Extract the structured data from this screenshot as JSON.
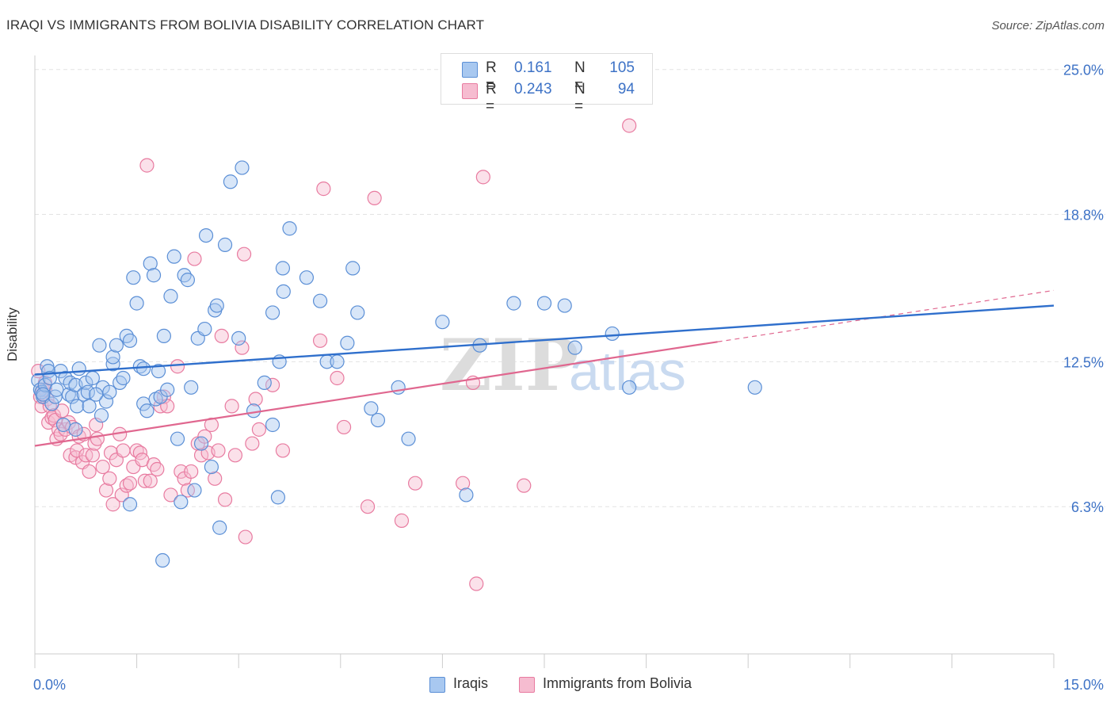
{
  "header": {
    "title": "IRAQI VS IMMIGRANTS FROM BOLIVIA DISABILITY CORRELATION CHART",
    "source": "Source: ZipAtlas.com"
  },
  "legend": {
    "rows": [
      {
        "r_label": "R =",
        "r_value": "0.161",
        "n_label": "N =",
        "n_value": "105"
      },
      {
        "r_label": "R =",
        "r_value": "0.243",
        "n_label": "N =",
        "n_value": "94"
      }
    ]
  },
  "bottom_legend": {
    "series1": "Iraqis",
    "series2": "Immigrants from Bolivia"
  },
  "watermark": {
    "zip": "ZIP",
    "atlas": "atlas"
  },
  "colors": {
    "series1_fill": "#a8c8f0",
    "series1_stroke": "#5b8fd6",
    "series1_line": "#2f6fcc",
    "series2_fill": "#f6bcd0",
    "series2_stroke": "#e87ba0",
    "series2_line": "#e0678f",
    "grid": "#e3e3e3",
    "tick_label": "#3d72c6"
  },
  "chart_data": {
    "type": "scatter",
    "title": "IRAQI VS IMMIGRANTS FROM BOLIVIA DISABILITY CORRELATION CHART",
    "xlabel": "",
    "ylabel": "Disability",
    "xlim": [
      0,
      15
    ],
    "ylim": [
      0,
      25.6
    ],
    "x_tick_labels": [
      "0.0%",
      "15.0%"
    ],
    "y_ticks": [
      6.3,
      12.5,
      18.8,
      25.0
    ],
    "y_tick_labels": [
      "6.3%",
      "12.5%",
      "18.8%",
      "25.0%"
    ],
    "grid": true,
    "legend_position": "top-center",
    "series": [
      {
        "name": "Iraqis",
        "R": 0.161,
        "N": 105,
        "trend": {
          "x": [
            0.0,
            15.0
          ],
          "y": [
            11.95,
            14.9
          ]
        },
        "points": [
          [
            0.05,
            11.7
          ],
          [
            0.08,
            11.3
          ],
          [
            0.1,
            11.2
          ],
          [
            0.12,
            11.0
          ],
          [
            0.15,
            11.5
          ],
          [
            0.18,
            12.3
          ],
          [
            0.2,
            12.1
          ],
          [
            0.22,
            11.8
          ],
          [
            0.25,
            10.7
          ],
          [
            0.3,
            11.0
          ],
          [
            0.32,
            11.3
          ],
          [
            0.38,
            12.1
          ],
          [
            0.42,
            9.8
          ],
          [
            0.45,
            11.8
          ],
          [
            0.5,
            11.1
          ],
          [
            0.52,
            11.6
          ],
          [
            0.55,
            11.0
          ],
          [
            0.6,
            11.5
          ],
          [
            0.62,
            10.6
          ],
          [
            0.65,
            12.2
          ],
          [
            0.72,
            11.1
          ],
          [
            0.75,
            11.6
          ],
          [
            0.78,
            11.2
          ],
          [
            0.8,
            10.6
          ],
          [
            0.85,
            11.8
          ],
          [
            0.95,
            13.2
          ],
          [
            0.98,
            10.2
          ],
          [
            1.0,
            11.4
          ],
          [
            1.05,
            10.8
          ],
          [
            1.1,
            11.2
          ],
          [
            1.15,
            12.4
          ],
          [
            1.15,
            12.7
          ],
          [
            1.2,
            13.2
          ],
          [
            1.25,
            11.6
          ],
          [
            1.3,
            11.8
          ],
          [
            1.35,
            13.6
          ],
          [
            1.4,
            13.4
          ],
          [
            1.45,
            16.1
          ],
          [
            1.5,
            15.0
          ],
          [
            1.55,
            12.3
          ],
          [
            1.6,
            12.2
          ],
          [
            1.6,
            10.7
          ],
          [
            1.65,
            10.4
          ],
          [
            1.7,
            16.7
          ],
          [
            1.75,
            16.2
          ],
          [
            1.78,
            10.9
          ],
          [
            1.82,
            12.1
          ],
          [
            1.85,
            11.0
          ],
          [
            1.88,
            4.0
          ],
          [
            1.9,
            13.6
          ],
          [
            1.95,
            11.3
          ],
          [
            2.0,
            15.3
          ],
          [
            2.05,
            17.0
          ],
          [
            2.1,
            9.2
          ],
          [
            2.15,
            6.5
          ],
          [
            2.2,
            16.2
          ],
          [
            2.25,
            16.0
          ],
          [
            2.3,
            11.4
          ],
          [
            2.35,
            7.0
          ],
          [
            2.4,
            13.5
          ],
          [
            2.45,
            9.0
          ],
          [
            2.5,
            13.9
          ],
          [
            2.52,
            17.9
          ],
          [
            2.6,
            8.0
          ],
          [
            2.65,
            14.7
          ],
          [
            2.68,
            14.9
          ],
          [
            2.72,
            5.4
          ],
          [
            2.8,
            17.5
          ],
          [
            2.88,
            20.2
          ],
          [
            3.0,
            13.5
          ],
          [
            3.05,
            20.8
          ],
          [
            3.22,
            10.4
          ],
          [
            3.38,
            11.6
          ],
          [
            3.5,
            14.6
          ],
          [
            3.5,
            9.8
          ],
          [
            3.58,
            6.7
          ],
          [
            3.6,
            12.5
          ],
          [
            3.65,
            16.5
          ],
          [
            3.66,
            15.5
          ],
          [
            3.75,
            18.2
          ],
          [
            4.0,
            16.1
          ],
          [
            4.2,
            15.1
          ],
          [
            4.3,
            12.5
          ],
          [
            4.45,
            12.5
          ],
          [
            4.6,
            13.3
          ],
          [
            4.68,
            16.5
          ],
          [
            4.75,
            14.6
          ],
          [
            4.95,
            10.5
          ],
          [
            5.05,
            10.0
          ],
          [
            5.35,
            11.4
          ],
          [
            5.5,
            9.2
          ],
          [
            6.0,
            14.2
          ],
          [
            6.35,
            6.8
          ],
          [
            6.55,
            13.2
          ],
          [
            7.05,
            15.0
          ],
          [
            7.5,
            15.0
          ],
          [
            7.8,
            14.9
          ],
          [
            7.95,
            13.1
          ],
          [
            8.5,
            13.7
          ],
          [
            8.75,
            11.4
          ],
          [
            10.6,
            11.4
          ],
          [
            0.12,
            11.1
          ],
          [
            0.6,
            9.6
          ],
          [
            0.9,
            11.1
          ],
          [
            1.4,
            6.4
          ]
        ]
      },
      {
        "name": "Immigrants from Bolivia",
        "R": 0.243,
        "N": 94,
        "trend": {
          "x": [
            0.0,
            10.05
          ],
          "y": [
            8.9,
            13.35
          ]
        },
        "trend_dashed": {
          "x": [
            10.05,
            15.0
          ],
          "y": [
            13.35,
            15.55
          ]
        },
        "points": [
          [
            0.05,
            12.1
          ],
          [
            0.08,
            11.0
          ],
          [
            0.1,
            10.6
          ],
          [
            0.12,
            11.3
          ],
          [
            0.15,
            11.6
          ],
          [
            0.18,
            10.9
          ],
          [
            0.2,
            9.9
          ],
          [
            0.22,
            10.6
          ],
          [
            0.25,
            10.1
          ],
          [
            0.28,
            10.2
          ],
          [
            0.3,
            10.0
          ],
          [
            0.32,
            9.2
          ],
          [
            0.35,
            9.6
          ],
          [
            0.38,
            9.4
          ],
          [
            0.4,
            10.4
          ],
          [
            0.45,
            9.6
          ],
          [
            0.5,
            9.9
          ],
          [
            0.52,
            8.5
          ],
          [
            0.55,
            9.7
          ],
          [
            0.6,
            8.4
          ],
          [
            0.62,
            8.7
          ],
          [
            0.65,
            9.3
          ],
          [
            0.7,
            8.2
          ],
          [
            0.72,
            9.4
          ],
          [
            0.75,
            8.5
          ],
          [
            0.8,
            7.8
          ],
          [
            0.85,
            8.5
          ],
          [
            0.88,
            9.0
          ],
          [
            0.9,
            9.8
          ],
          [
            0.92,
            9.2
          ],
          [
            1.0,
            8.0
          ],
          [
            1.05,
            7.0
          ],
          [
            1.1,
            7.5
          ],
          [
            1.12,
            8.6
          ],
          [
            1.15,
            6.4
          ],
          [
            1.2,
            8.3
          ],
          [
            1.25,
            9.4
          ],
          [
            1.28,
            6.8
          ],
          [
            1.3,
            8.7
          ],
          [
            1.35,
            7.2
          ],
          [
            1.4,
            7.3
          ],
          [
            1.45,
            8.0
          ],
          [
            1.5,
            8.7
          ],
          [
            1.55,
            8.6
          ],
          [
            1.58,
            8.3
          ],
          [
            1.62,
            7.4
          ],
          [
            1.65,
            20.9
          ],
          [
            1.7,
            7.4
          ],
          [
            1.75,
            8.1
          ],
          [
            1.8,
            7.9
          ],
          [
            1.85,
            10.6
          ],
          [
            1.9,
            11.0
          ],
          [
            1.95,
            10.6
          ],
          [
            2.0,
            6.8
          ],
          [
            2.1,
            12.3
          ],
          [
            2.15,
            7.8
          ],
          [
            2.2,
            7.5
          ],
          [
            2.25,
            7.0
          ],
          [
            2.3,
            7.8
          ],
          [
            2.35,
            16.9
          ],
          [
            2.4,
            9.0
          ],
          [
            2.45,
            8.5
          ],
          [
            2.5,
            9.3
          ],
          [
            2.55,
            8.6
          ],
          [
            2.6,
            9.8
          ],
          [
            2.65,
            7.5
          ],
          [
            2.7,
            8.7
          ],
          [
            2.75,
            13.6
          ],
          [
            2.8,
            6.6
          ],
          [
            2.9,
            10.6
          ],
          [
            2.95,
            8.5
          ],
          [
            3.05,
            13.1
          ],
          [
            3.08,
            17.1
          ],
          [
            3.1,
            5.0
          ],
          [
            3.2,
            9.0
          ],
          [
            3.25,
            10.9
          ],
          [
            3.3,
            9.6
          ],
          [
            3.5,
            11.5
          ],
          [
            3.65,
            8.7
          ],
          [
            4.2,
            13.4
          ],
          [
            4.25,
            19.9
          ],
          [
            4.45,
            11.8
          ],
          [
            4.55,
            9.7
          ],
          [
            4.9,
            6.3
          ],
          [
            5.0,
            19.5
          ],
          [
            5.4,
            5.7
          ],
          [
            5.6,
            7.3
          ],
          [
            6.3,
            7.3
          ],
          [
            6.45,
            11.6
          ],
          [
            6.5,
            3.0
          ],
          [
            6.6,
            20.4
          ],
          [
            7.2,
            7.2
          ],
          [
            8.75,
            22.6
          ],
          [
            0.15,
            11.3
          ]
        ]
      }
    ]
  }
}
